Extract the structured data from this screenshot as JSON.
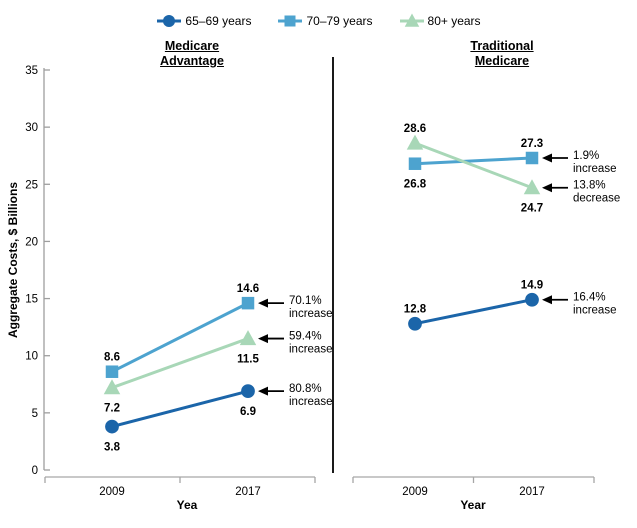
{
  "legend": {
    "items": [
      {
        "label": "65–69 years",
        "marker": "circle",
        "color": "#1B65A9"
      },
      {
        "label": "70–79 years",
        "marker": "square",
        "color": "#4DA3CF"
      },
      {
        "label": "80+ years",
        "marker": "triangle",
        "color": "#A8D7B7"
      }
    ]
  },
  "ylabel": "Aggregate Costs, $ Billions",
  "colors": {
    "axis_line": "#A6A6A6",
    "y_axis_line": "#9E9E9E",
    "panel_divider": "#000000",
    "annotation": "#000000",
    "tick_text": "#000000"
  },
  "chart_data": [
    {
      "type": "line",
      "title": "Medicare Advantage",
      "title_lines": [
        "Medicare",
        "Advantage"
      ],
      "xlabel": "Yea",
      "x_categories": [
        "2009",
        "2017"
      ],
      "ylim": [
        0,
        35
      ],
      "yticks": [
        0,
        5,
        10,
        15,
        20,
        25,
        30,
        35
      ],
      "grid": false,
      "series": [
        {
          "name": "65–69 years",
          "marker": "circle",
          "color": "#1B65A9",
          "values": [
            3.8,
            6.9
          ],
          "value_labels": [
            "3.8",
            "6.9"
          ],
          "label_positions": [
            "below",
            "below"
          ],
          "annotation_lines": [
            "80.8%",
            "increase"
          ]
        },
        {
          "name": "70–79 years",
          "marker": "square",
          "color": "#4DA3CF",
          "values": [
            8.6,
            14.6
          ],
          "value_labels": [
            "8.6",
            "14.6"
          ],
          "label_positions": [
            "above",
            "above"
          ],
          "annotation_lines": [
            "70.1%",
            "increase"
          ]
        },
        {
          "name": "80+ years",
          "marker": "triangle",
          "color": "#A8D7B7",
          "values": [
            7.2,
            11.5
          ],
          "value_labels": [
            "7.2",
            "11.5"
          ],
          "label_positions": [
            "below",
            "below"
          ],
          "annotation_lines": [
            "59.4%",
            "increase"
          ]
        }
      ]
    },
    {
      "type": "line",
      "title": "Traditional Medicare",
      "title_lines": [
        "Traditional",
        "Medicare"
      ],
      "xlabel": "Year",
      "x_categories": [
        "2009",
        "2017"
      ],
      "ylim": [
        0,
        35
      ],
      "yticks": [
        0,
        5,
        10,
        15,
        20,
        25,
        30,
        35
      ],
      "grid": false,
      "series": [
        {
          "name": "65–69 years",
          "marker": "circle",
          "color": "#1B65A9",
          "values": [
            12.8,
            14.9
          ],
          "value_labels": [
            "12.8",
            "14.9"
          ],
          "label_positions": [
            "above",
            "above"
          ],
          "annotation_lines": [
            "16.4%",
            "increase"
          ]
        },
        {
          "name": "70–79 years",
          "marker": "square",
          "color": "#4DA3CF",
          "values": [
            26.8,
            27.3
          ],
          "value_labels": [
            "26.8",
            "27.3"
          ],
          "label_positions": [
            "below",
            "above"
          ],
          "annotation_lines": [
            "1.9%",
            "increase"
          ]
        },
        {
          "name": "80+ years",
          "marker": "triangle",
          "color": "#A8D7B7",
          "values": [
            28.6,
            24.7
          ],
          "value_labels": [
            "28.6",
            "24.7"
          ],
          "label_positions": [
            "above",
            "below"
          ],
          "annotation_lines": [
            "13.8%",
            "decrease"
          ]
        }
      ]
    }
  ]
}
